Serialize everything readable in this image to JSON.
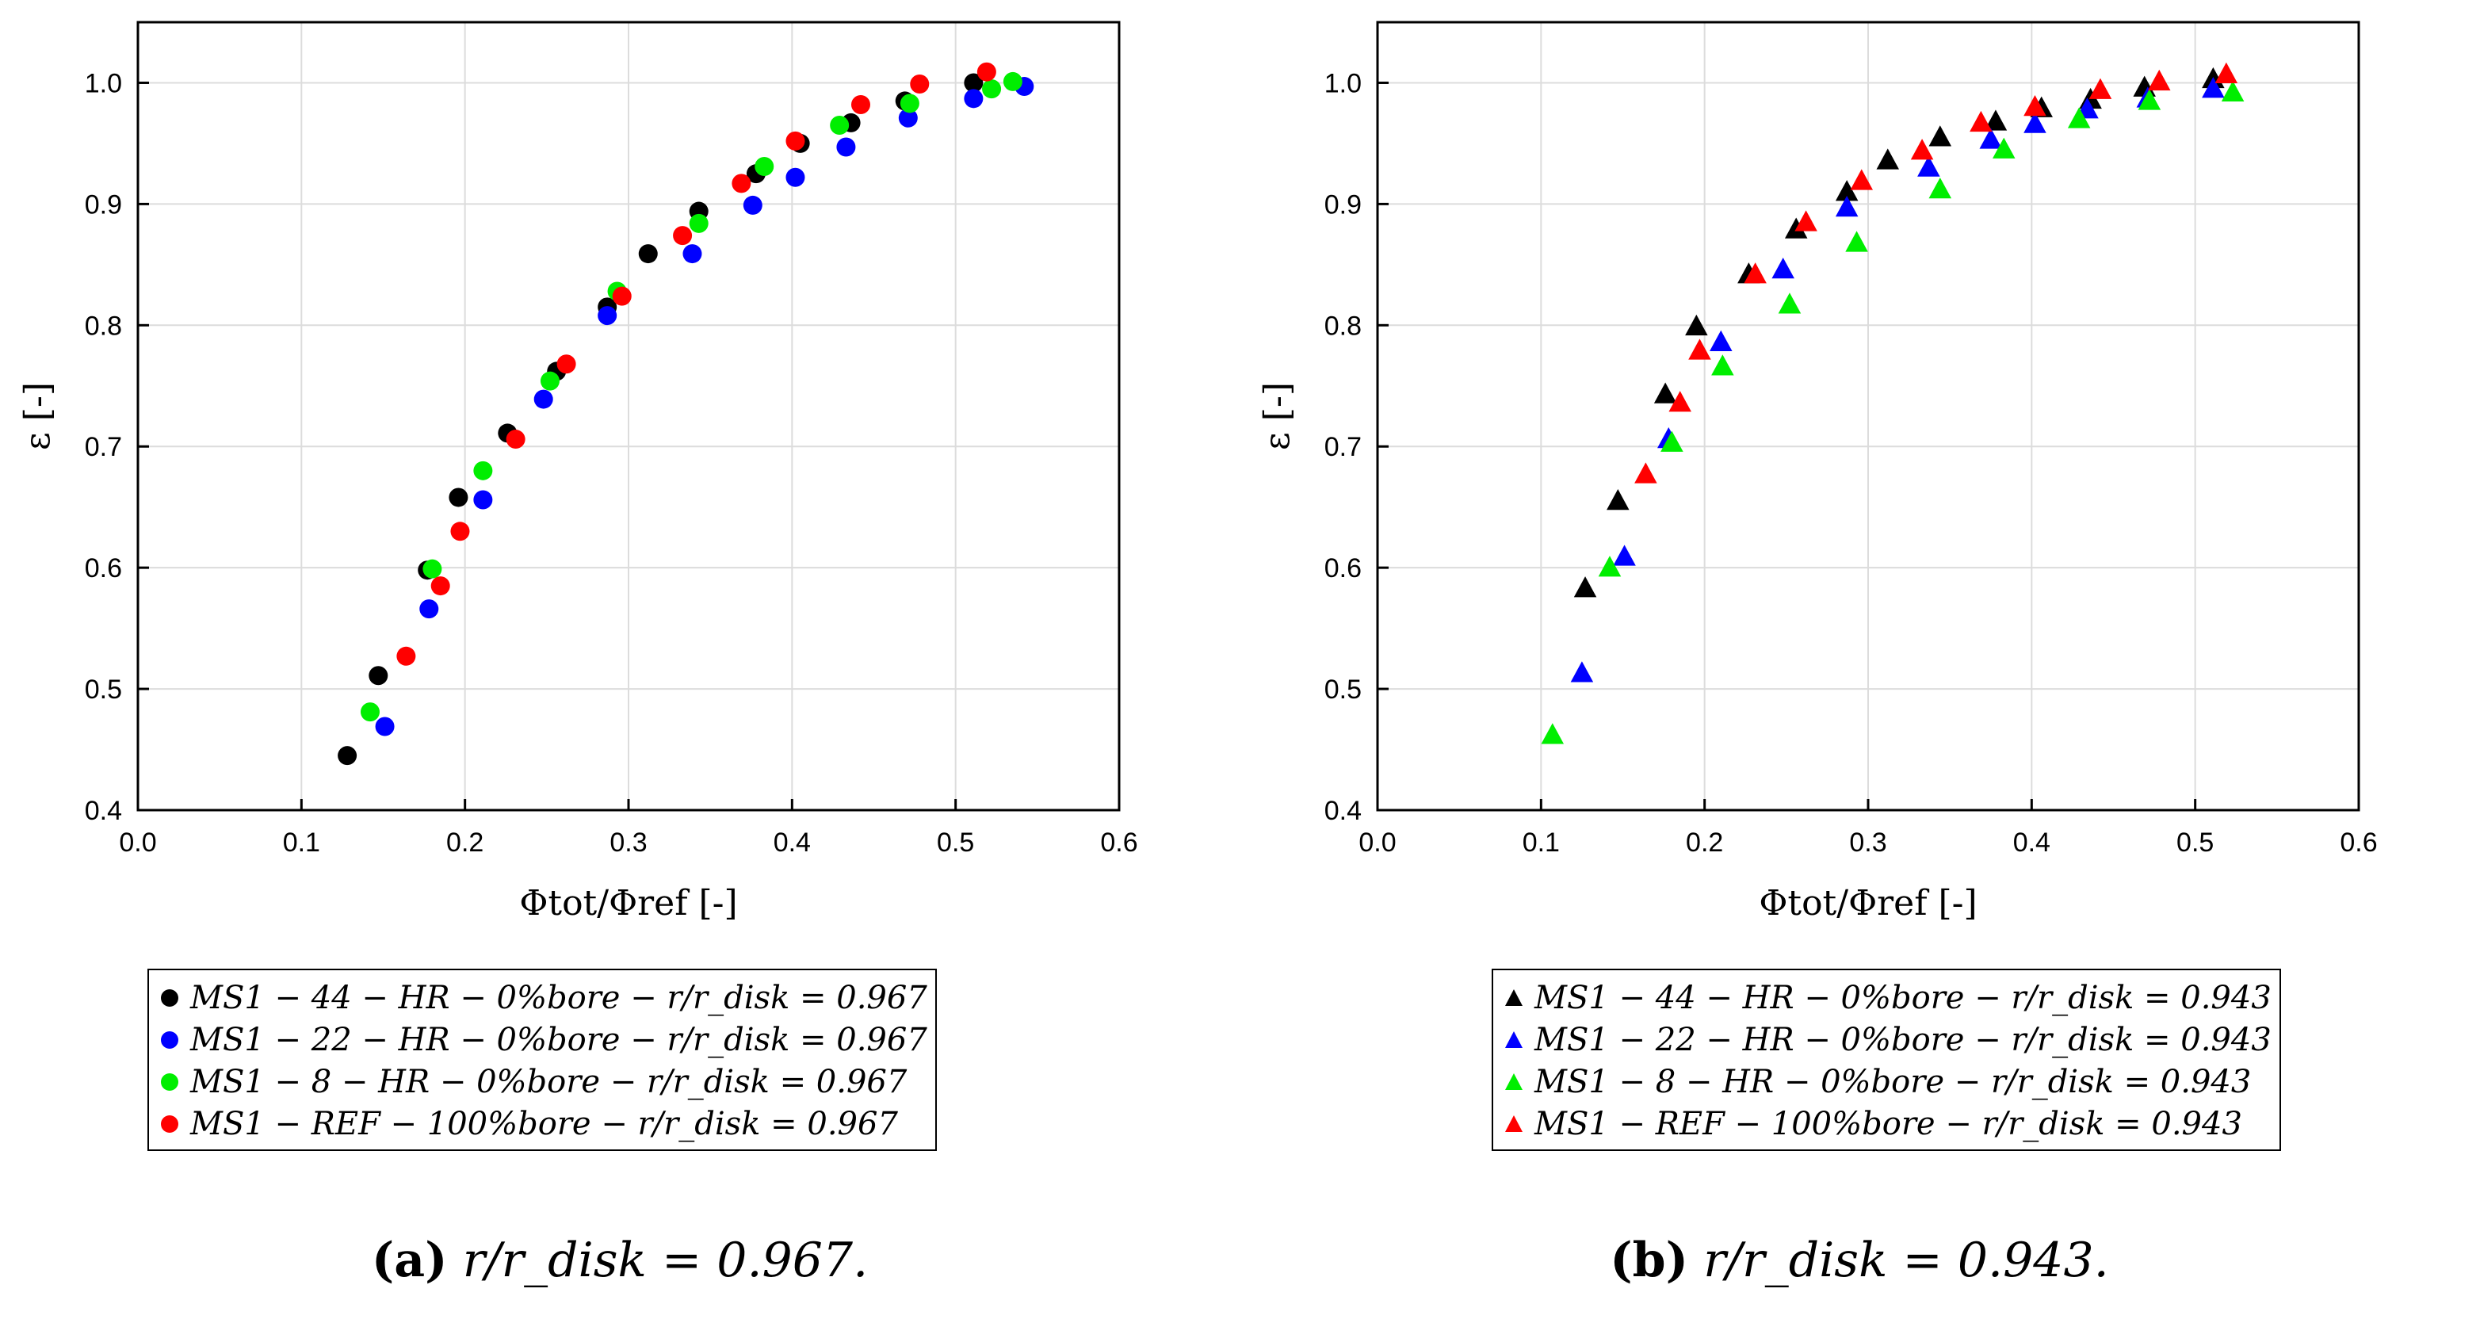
{
  "figure": {
    "captions": [
      {
        "label": "(a)",
        "text": "r/r_disk = 0.967."
      },
      {
        "label": "(b)",
        "text": "r/r_disk = 0.943."
      }
    ]
  },
  "chart_data": [
    {
      "id": "a",
      "type": "scatter",
      "marker": "circle",
      "xlabel": "Φtot/Φref [-]",
      "ylabel": "ε [-]",
      "xlim": [
        0.0,
        0.6
      ],
      "ylim": [
        0.4,
        1.05
      ],
      "xticks": [
        "0.0",
        "0.1",
        "0.2",
        "0.3",
        "0.4",
        "0.5",
        "0.6"
      ],
      "yticks": [
        "0.4",
        "0.5",
        "0.6",
        "0.7",
        "0.8",
        "0.9",
        "1.0"
      ],
      "grid": true,
      "legend_position": "below",
      "series": [
        {
          "name": "MS1 − 44 − HR − 0%bore − r/r_disk = 0.967",
          "color": "#000000",
          "x": [
            0.128,
            0.147,
            0.177,
            0.196,
            0.226,
            0.256,
            0.287,
            0.312,
            0.343,
            0.378,
            0.405,
            0.436,
            0.469,
            0.511
          ],
          "y": [
            0.445,
            0.511,
            0.598,
            0.658,
            0.711,
            0.762,
            0.815,
            0.859,
            0.894,
            0.925,
            0.95,
            0.967,
            0.985,
            1.0
          ]
        },
        {
          "name": "MS1 − 22 − HR − 0%bore − r/r_disk = 0.967",
          "color": "#0000ff",
          "x": [
            0.151,
            0.178,
            0.211,
            0.248,
            0.287,
            0.339,
            0.376,
            0.402,
            0.433,
            0.471,
            0.511,
            0.542
          ],
          "y": [
            0.469,
            0.566,
            0.656,
            0.739,
            0.808,
            0.859,
            0.899,
            0.922,
            0.947,
            0.971,
            0.987,
            0.997
          ]
        },
        {
          "name": "MS1 − 8 − HR − 0%bore − r/r_disk = 0.967",
          "color": "#00ee00",
          "x": [
            0.142,
            0.18,
            0.211,
            0.252,
            0.293,
            0.343,
            0.383,
            0.429,
            0.472,
            0.522,
            0.535
          ],
          "y": [
            0.481,
            0.599,
            0.68,
            0.754,
            0.828,
            0.884,
            0.931,
            0.965,
            0.983,
            0.995,
            1.001
          ]
        },
        {
          "name": "MS1 − REF − 100%bore − r/r_disk = 0.967",
          "color": "#ff0000",
          "x": [
            0.164,
            0.185,
            0.197,
            0.231,
            0.262,
            0.296,
            0.333,
            0.369,
            0.402,
            0.442,
            0.478,
            0.519
          ],
          "y": [
            0.527,
            0.585,
            0.63,
            0.706,
            0.768,
            0.824,
            0.874,
            0.917,
            0.952,
            0.982,
            0.999,
            1.009
          ]
        }
      ]
    },
    {
      "id": "b",
      "type": "scatter",
      "marker": "triangle",
      "xlabel": "Φtot/Φref [-]",
      "ylabel": "ε [-]",
      "xlim": [
        0.0,
        0.6
      ],
      "ylim": [
        0.4,
        1.05
      ],
      "xticks": [
        "0.0",
        "0.1",
        "0.2",
        "0.3",
        "0.4",
        "0.5",
        "0.6"
      ],
      "yticks": [
        "0.4",
        "0.5",
        "0.6",
        "0.7",
        "0.8",
        "0.9",
        "1.0"
      ],
      "grid": true,
      "legend_position": "below",
      "series": [
        {
          "name": "MS1 − 44 − HR − 0%bore − r/r_disk = 0.943",
          "color": "#000000",
          "x": [
            0.127,
            0.147,
            0.176,
            0.195,
            0.227,
            0.256,
            0.287,
            0.312,
            0.344,
            0.378,
            0.406,
            0.436,
            0.469,
            0.511
          ],
          "y": [
            0.583,
            0.655,
            0.743,
            0.799,
            0.842,
            0.879,
            0.91,
            0.936,
            0.955,
            0.968,
            0.979,
            0.986,
            0.996,
            1.003
          ]
        },
        {
          "name": "MS1 − 22 − HR − 0%bore − r/r_disk = 0.943",
          "color": "#0000ff",
          "x": [
            0.125,
            0.151,
            0.178,
            0.21,
            0.248,
            0.287,
            0.337,
            0.375,
            0.402,
            0.434,
            0.471,
            0.511
          ],
          "y": [
            0.513,
            0.609,
            0.706,
            0.786,
            0.846,
            0.897,
            0.93,
            0.953,
            0.966,
            0.978,
            0.987,
            0.995
          ]
        },
        {
          "name": "MS1 − 8 − HR − 0%bore − r/r_disk = 0.943",
          "color": "#00ee00",
          "x": [
            0.107,
            0.142,
            0.18,
            0.211,
            0.252,
            0.293,
            0.344,
            0.383,
            0.429,
            0.472,
            0.523
          ],
          "y": [
            0.462,
            0.6,
            0.703,
            0.766,
            0.817,
            0.868,
            0.912,
            0.945,
            0.97,
            0.985,
            0.992
          ]
        },
        {
          "name": "MS1 − REF − 100%bore − r/r_disk = 0.943",
          "color": "#ff0000",
          "x": [
            0.164,
            0.185,
            0.197,
            0.231,
            0.262,
            0.296,
            0.333,
            0.369,
            0.402,
            0.442,
            0.478,
            0.519
          ],
          "y": [
            0.677,
            0.736,
            0.779,
            0.842,
            0.885,
            0.919,
            0.944,
            0.967,
            0.98,
            0.994,
            1.001,
            1.007
          ]
        }
      ]
    }
  ]
}
